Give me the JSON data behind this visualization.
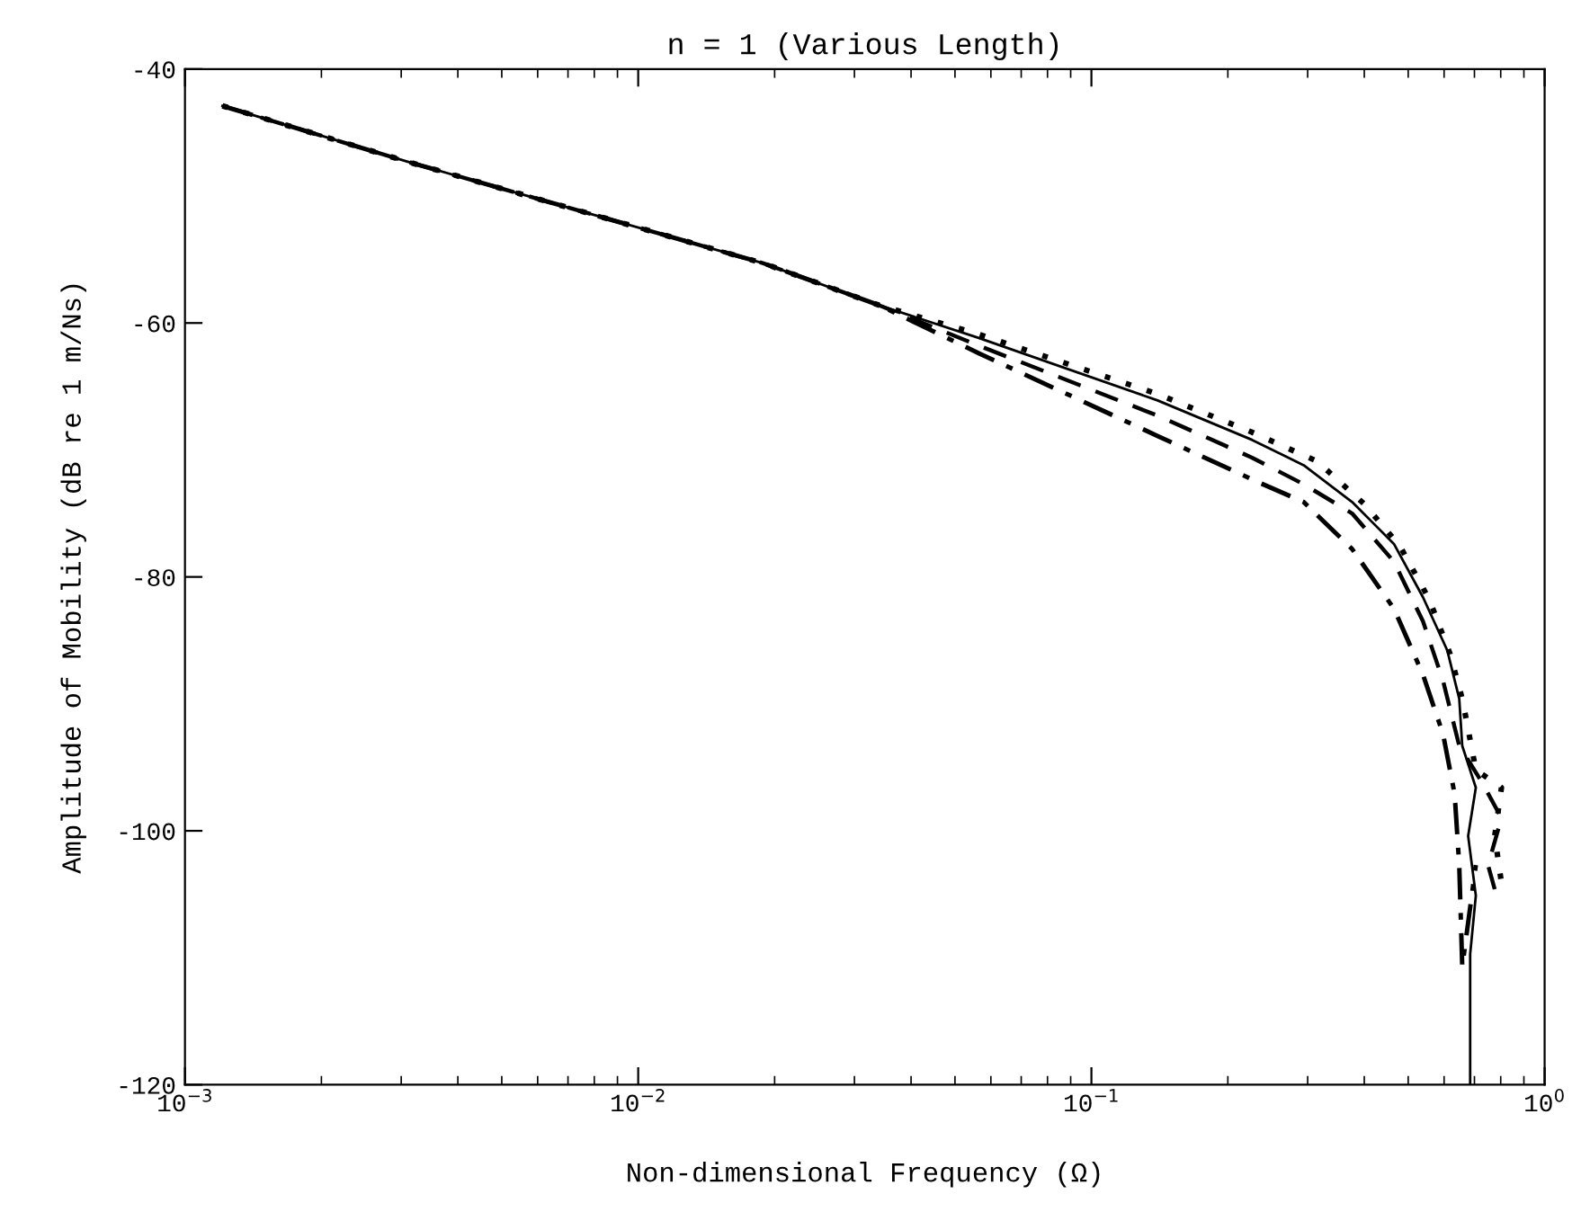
{
  "chart_data": {
    "type": "line",
    "title": "n = 1 (Various Length)",
    "xlabel": "Non-dimensional Frequency (Ω)",
    "ylabel": "Amplitude of Mobility (dB re 1 m/Ns)",
    "log": "x",
    "grid": false,
    "marker": "none",
    "xlim": [
      0.001,
      1
    ],
    "xticks": [
      {
        "value": 0.001,
        "label": "10$^{−3}$"
      },
      {
        "value": 0.01,
        "label": "10$^{−2}$"
      },
      {
        "value": 0.1,
        "label": "10$^{−1}$"
      },
      {
        "value": 1,
        "label": "10$^{0}$"
      }
    ],
    "ylim": [
      -120,
      -40
    ],
    "yticks": [
      -120,
      -100,
      -80,
      -60,
      -40
    ],
    "series": [
      {
        "color": "#000000",
        "line_style": "dotted",
        "x": [
          0.00121,
          0.0031,
          0.00766,
          0.0189,
          0.034,
          0.0566,
          0.14,
          0.226,
          0.315,
          0.401,
          0.48,
          0.557,
          0.619,
          0.658,
          0.678,
          0.705,
          0.803,
          0.776,
          0.803
        ],
        "values": [
          -42.9,
          -47.3,
          -51.3,
          -55.3,
          -58.6,
          -60.9,
          -65.6,
          -68.6,
          -70.9,
          -74.3,
          -77.6,
          -81.8,
          -86.1,
          -89.6,
          -92.0,
          -95.2,
          -96.6,
          -100.4,
          -104.1
        ]
      },
      {
        "color": "#000000",
        "line_style": "solid",
        "x": [
          0.00121,
          0.0031,
          0.00766,
          0.0189,
          0.034,
          0.0566,
          0.14,
          0.226,
          0.294,
          0.376,
          0.465,
          0.539,
          0.61,
          0.648,
          0.658,
          0.705,
          0.678,
          0.705,
          0.685,
          0.685
        ],
        "values": [
          -42.9,
          -47.3,
          -51.3,
          -55.3,
          -58.6,
          -61.2,
          -66.1,
          -69.2,
          -71.2,
          -74.1,
          -77.4,
          -81.6,
          -85.8,
          -89.6,
          -93.3,
          -96.6,
          -100.4,
          -105.1,
          -109.7,
          -120
        ]
      },
      {
        "color": "#000000",
        "line_style": "dashed",
        "x": [
          0.00121,
          0.0031,
          0.00766,
          0.0189,
          0.034,
          0.0566,
          0.14,
          0.226,
          0.294,
          0.376,
          0.465,
          0.539,
          0.597,
          0.648,
          0.728,
          0.803,
          0.75,
          0.776
        ],
        "values": [
          -42.9,
          -47.3,
          -51.3,
          -55.3,
          -58.6,
          -61.8,
          -67.3,
          -70.6,
          -72.7,
          -75.0,
          -78.8,
          -83.5,
          -88.2,
          -93.3,
          -96.2,
          -99.0,
          -102.7,
          -104.6
        ]
      },
      {
        "color": "#000000",
        "line_style": "dashdot",
        "x": [
          0.00121,
          0.0031,
          0.00766,
          0.0189,
          0.034,
          0.0566,
          0.14,
          0.232,
          0.294,
          0.376,
          0.465,
          0.539,
          0.597,
          0.633,
          0.648,
          0.658,
          0.705
        ],
        "values": [
          -42.9,
          -47.3,
          -51.3,
          -55.3,
          -58.6,
          -62.4,
          -68.9,
          -72.5,
          -74.1,
          -77.8,
          -82.5,
          -87.7,
          -92.4,
          -97.1,
          -102.7,
          -110.7,
          -102.7
        ]
      }
    ]
  }
}
